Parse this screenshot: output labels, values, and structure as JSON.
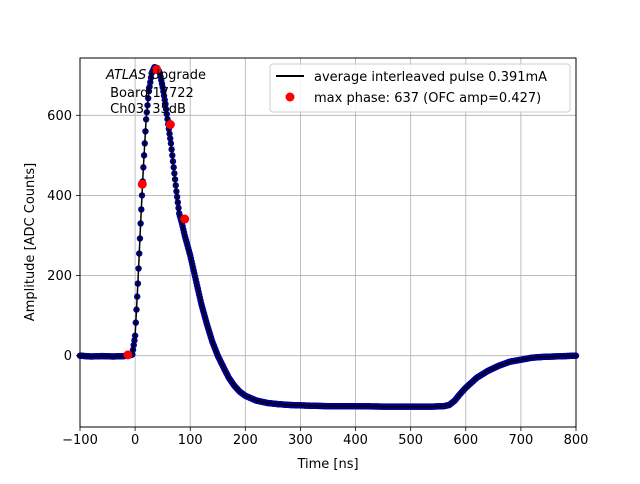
{
  "chart_data": {
    "type": "line",
    "title": "",
    "xlabel": "Time [ns]",
    "ylabel": "Amplitude [ADC Counts]",
    "xlim": [
      -100,
      800
    ],
    "ylim": [
      -178,
      743
    ],
    "x_ticks": [
      -100,
      0,
      100,
      200,
      300,
      400,
      500,
      600,
      700,
      800
    ],
    "y_ticks": [
      0,
      200,
      400,
      600
    ],
    "grid": true,
    "legend_position": "top-right",
    "annotation": {
      "italic": "ATLAS",
      "upright": " Upgrade",
      "line2": " Board 17722",
      "line3": " Ch03, 35dB"
    },
    "series": [
      {
        "name": "average interleaved pulse 0.391mA",
        "kind": "line",
        "color": "#000000",
        "marker_color": "#00008b",
        "x": [
          -100,
          -80,
          -60,
          -40,
          -20,
          -10,
          -5,
          0,
          5,
          10,
          15,
          20,
          25,
          30,
          35,
          40,
          45,
          50,
          55,
          60,
          65,
          70,
          75,
          80,
          85,
          90,
          100,
          110,
          120,
          130,
          140,
          150,
          160,
          170,
          180,
          190,
          200,
          220,
          240,
          260,
          280,
          300,
          350,
          400,
          450,
          500,
          540,
          560,
          570,
          580,
          590,
          600,
          620,
          640,
          660,
          680,
          700,
          720,
          740,
          760,
          780,
          800
        ],
        "y": [
          0,
          -2,
          -1,
          -2,
          -1,
          1,
          3,
          50,
          180,
          330,
          470,
          590,
          660,
          705,
          720,
          718,
          705,
          670,
          628,
          578,
          530,
          470,
          410,
          355,
          330,
          300,
          250,
          190,
          130,
          80,
          35,
          0,
          -28,
          -55,
          -75,
          -90,
          -100,
          -112,
          -118,
          -121,
          -123,
          -124,
          -126,
          -126,
          -127,
          -127,
          -127,
          -126,
          -123,
          -112,
          -95,
          -80,
          -55,
          -38,
          -25,
          -15,
          -10,
          -5,
          -3,
          -2,
          -1,
          0
        ]
      },
      {
        "name": "max phase: 637 (OFC amp=0.427)",
        "kind": "points",
        "color": "#ff0000",
        "x": [
          -13,
          13,
          39,
          64,
          90
        ],
        "y": [
          2,
          428,
          714,
          577,
          341
        ]
      }
    ]
  }
}
